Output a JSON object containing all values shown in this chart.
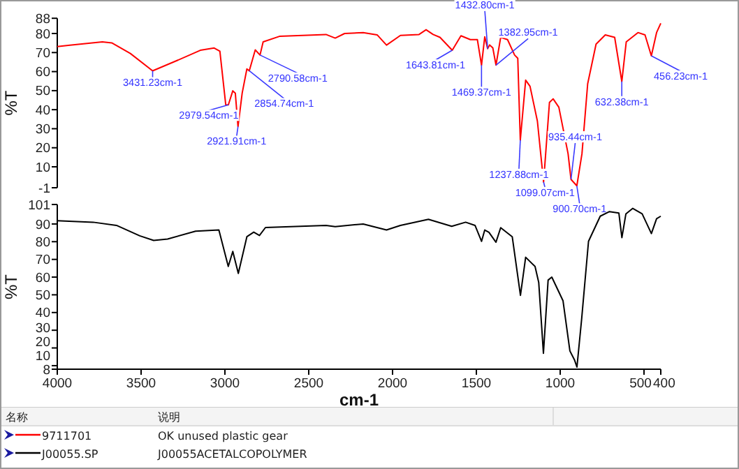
{
  "chart_data": [
    {
      "type": "line",
      "xlim": [
        4000,
        400
      ],
      "ylim": [
        -1,
        88
      ],
      "yticks": [
        88,
        80,
        70,
        60,
        50,
        40,
        30,
        20,
        10,
        -1
      ],
      "ylabel": "%T",
      "tick_labels": "y",
      "legend": "bottom",
      "legend_title": "名称",
      "series": [
        {
          "name": "9711701",
          "color": "#ff0000",
          "x": [
            4000,
            3925,
            3731,
            3675,
            3564,
            3431.23,
            3286,
            3147,
            3064,
            3030,
            2995,
            2979.54,
            2953,
            2938,
            2921.91,
            2897,
            2869,
            2854.74,
            2819,
            2790.58,
            2772,
            2675,
            2397,
            2342,
            2286,
            2175,
            2092,
            2036,
            1953,
            1842,
            1800,
            1758,
            1717,
            1643.81,
            1592,
            1536,
            1494,
            1469.37,
            1450,
            1432.8,
            1421,
            1402,
            1382.95,
            1355,
            1314,
            1272,
            1253,
            1237.88,
            1206,
            1180,
            1136,
            1099.07,
            1064,
            1042,
            1008,
            953,
            935.44,
            900.7,
            870,
            836,
            786,
            731,
            675,
            632.38,
            606,
            536,
            494,
            456.23,
            425,
            400
          ],
          "values": [
            73.1,
            73.9,
            75.6,
            75.1,
            69.5,
            60.4,
            65.8,
            71.2,
            72.4,
            70.7,
            42.6,
            42.5,
            49.9,
            48.7,
            31.1,
            48.7,
            61.4,
            60.4,
            71.4,
            68.7,
            75.6,
            78.5,
            79.5,
            77.6,
            80,
            80.5,
            79.3,
            73.9,
            79,
            79.5,
            82,
            79.5,
            78,
            71.2,
            78.8,
            76.8,
            76.8,
            63.4,
            78.3,
            72,
            74,
            72.5,
            63.4,
            78,
            76.8,
            68.7,
            67,
            24,
            55.5,
            52.3,
            34,
            2,
            43.8,
            45.7,
            41.3,
            16.9,
            3.4,
            0,
            16.9,
            53.6,
            74.4,
            79.3,
            78,
            54.8,
            75.6,
            80.5,
            79.3,
            68.3,
            80.5,
            85.4
          ]
        }
      ],
      "annotations": [
        {
          "text": "3431.23cm-1",
          "x": 3431.23,
          "y": 60.4
        },
        {
          "text": "2979.54cm-1",
          "x": 2979.54,
          "y": 42.5
        },
        {
          "text": "2921.91cm-1",
          "x": 2921.91,
          "y": 31.1
        },
        {
          "text": "2854.74cm-1",
          "x": 2854.74,
          "y": 60.4
        },
        {
          "text": "2790.58cm-1",
          "x": 2790.58,
          "y": 68.7
        },
        {
          "text": "1643.81cm-1",
          "x": 1643.81,
          "y": 71.2
        },
        {
          "text": "1469.37cm-1",
          "x": 1469.37,
          "y": 63.4
        },
        {
          "text": "1432.80cm-1",
          "x": 1432.8,
          "y": 72
        },
        {
          "text": "1382.95cm-1",
          "x": 1382.95,
          "y": 63.4
        },
        {
          "text": "1237.88cm-1",
          "x": 1237.88,
          "y": 24
        },
        {
          "text": "1099.07cm-1",
          "x": 1099.07,
          "y": 2
        },
        {
          "text": "935.44cm-1",
          "x": 935.44,
          "y": 3.4
        },
        {
          "text": "900.70cm-1",
          "x": 900.7,
          "y": 0
        },
        {
          "text": "632.38cm-1",
          "x": 632.38,
          "y": 54.8
        },
        {
          "text": "456.23cm-1",
          "x": 456.23,
          "y": 68.3
        },
        "说明",
        "OK unused plastic gear"
      ]
    },
    {
      "type": "line",
      "xlim": [
        4000,
        400
      ],
      "xticks": [
        4000,
        3500,
        3000,
        2500,
        2000,
        1500,
        1000,
        500,
        400
      ],
      "ylim": [
        8,
        101
      ],
      "yticks": [
        101,
        90,
        80,
        70,
        60,
        50,
        40,
        30,
        20,
        10,
        8
      ],
      "ylabel": "%T",
      "xlabel": "cm-1",
      "legend": "bottom",
      "series": [
        {
          "name": "J00055.SP",
          "color": "#000000",
          "x": [
            4000,
            3786,
            3647,
            3508,
            3425,
            3342,
            3175,
            3036,
            2980,
            2953,
            2920,
            2869,
            2828,
            2794,
            2758,
            2397,
            2342,
            2175,
            2036,
            1953,
            1786,
            1647,
            1564,
            1508,
            1469,
            1450,
            1425,
            1383,
            1355,
            1286,
            1237,
            1206,
            1150,
            1128,
            1100,
            1072,
            1050,
            983,
            942,
            914,
            900,
            872,
            831,
            761,
            706,
            650,
            632,
            608,
            567,
            511,
            456,
            425,
            400
          ],
          "values": [
            91.8,
            91,
            89.2,
            83.3,
            80.7,
            81.5,
            85.9,
            86.6,
            66,
            74.5,
            62.1,
            82.8,
            85.4,
            83.5,
            88,
            89.2,
            88.5,
            90,
            86.6,
            89.2,
            92.6,
            88.7,
            91,
            89.2,
            80.2,
            86.6,
            85.3,
            79.7,
            87.9,
            82.8,
            49.7,
            71.2,
            66,
            57,
            17,
            58.3,
            60,
            46.6,
            18.3,
            13.1,
            9.2,
            36.3,
            80.2,
            94.4,
            97,
            96.2,
            82.3,
            95.7,
            98.8,
            95.7,
            84.6,
            93,
            94.4
          ]
        }
      ],
      "annotations": [
        "J00055ACETALCOPOLYMER"
      ]
    }
  ]
}
